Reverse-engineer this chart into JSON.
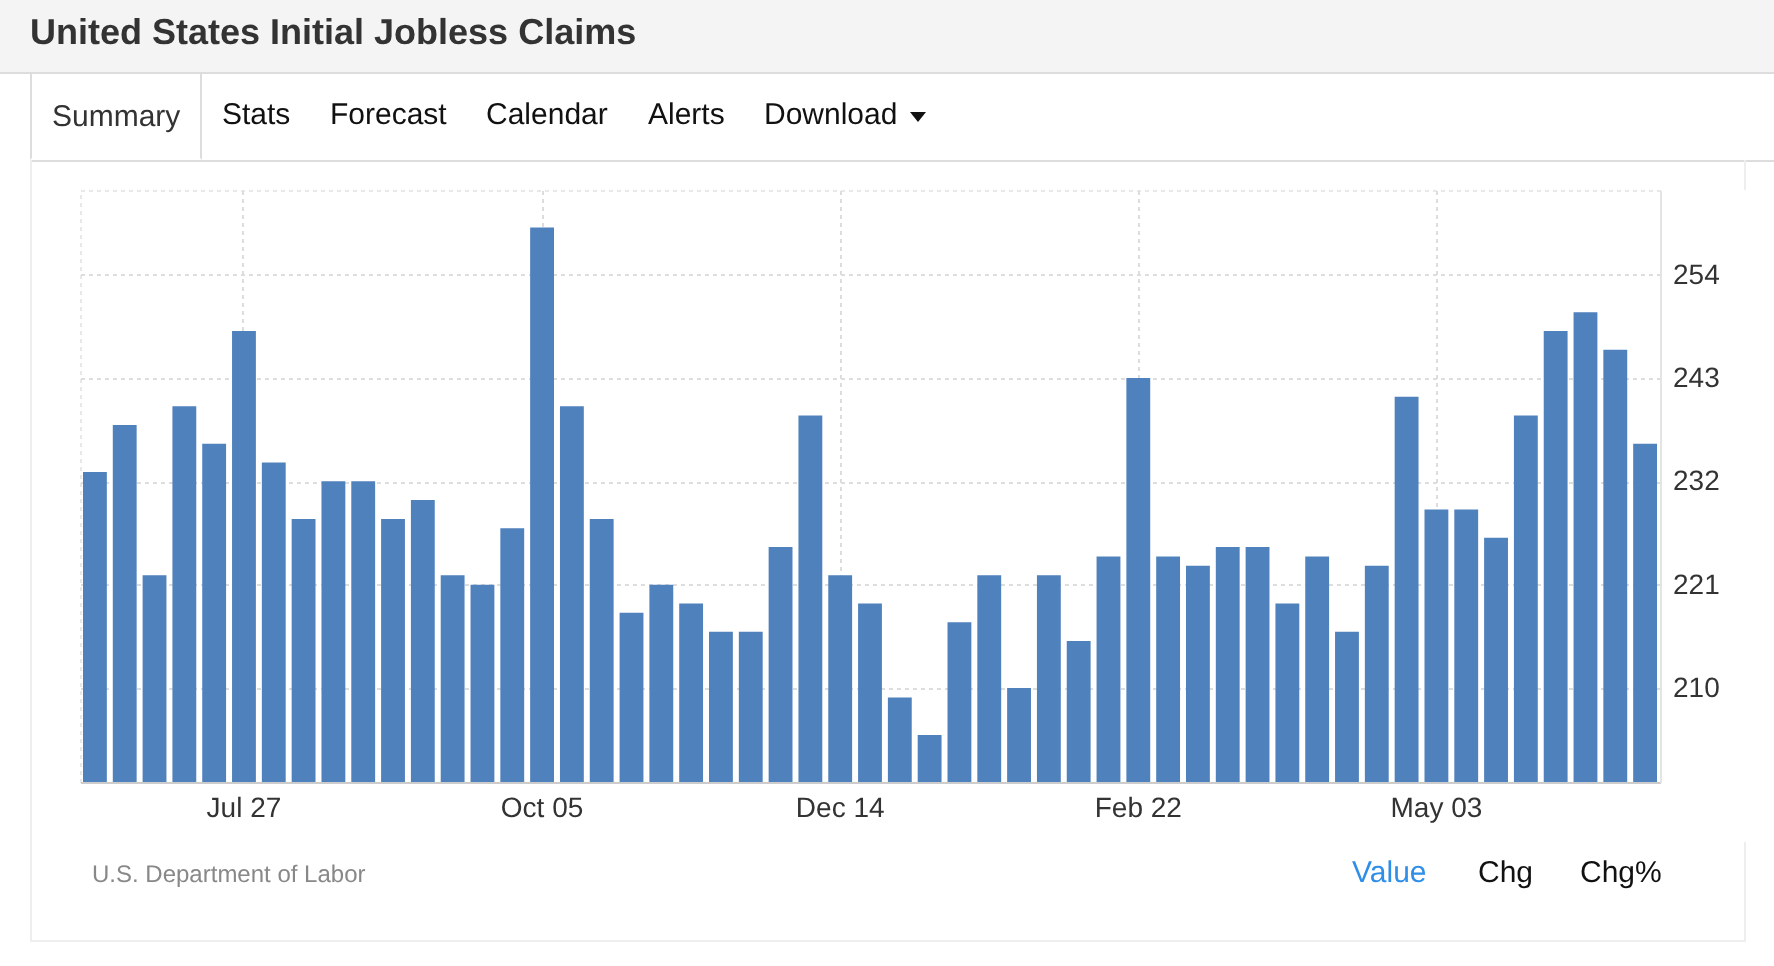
{
  "chart_data": {
    "type": "bar",
    "title": "United States Initial Jobless Claims",
    "categories": [
      null,
      null,
      null,
      null,
      null,
      "Jul 27",
      null,
      null,
      null,
      null,
      null,
      null,
      null,
      null,
      null,
      "Oct 05",
      null,
      null,
      null,
      null,
      null,
      null,
      null,
      null,
      null,
      "Dec 14",
      null,
      null,
      null,
      null,
      null,
      null,
      null,
      null,
      null,
      "Feb 22",
      null,
      null,
      null,
      null,
      null,
      null,
      null,
      null,
      null,
      "May 03",
      null,
      null,
      null,
      null,
      null,
      null,
      null
    ],
    "values": [
      233,
      238,
      222,
      240,
      236,
      248,
      234,
      228,
      232,
      232,
      228,
      230,
      222,
      221,
      227,
      259,
      240,
      228,
      218,
      221,
      219,
      216,
      216,
      225,
      239,
      222,
      219,
      209,
      205,
      217,
      222,
      210,
      222,
      215,
      224,
      243,
      224,
      223,
      225,
      225,
      219,
      224,
      216,
      223,
      241,
      229,
      229,
      226,
      239,
      248,
      250,
      246,
      236
    ],
    "color": "#4f81bd",
    "ylim": [
      200,
      263
    ],
    "yticks": [
      210,
      221,
      232,
      243,
      254
    ],
    "grid": true,
    "annotations": [
      "Summary",
      "Stats",
      "Forecast",
      "Calendar",
      "Alerts",
      "Download",
      "U.S. Department of Labor",
      "Value",
      "Chg",
      "Chg%"
    ]
  }
}
